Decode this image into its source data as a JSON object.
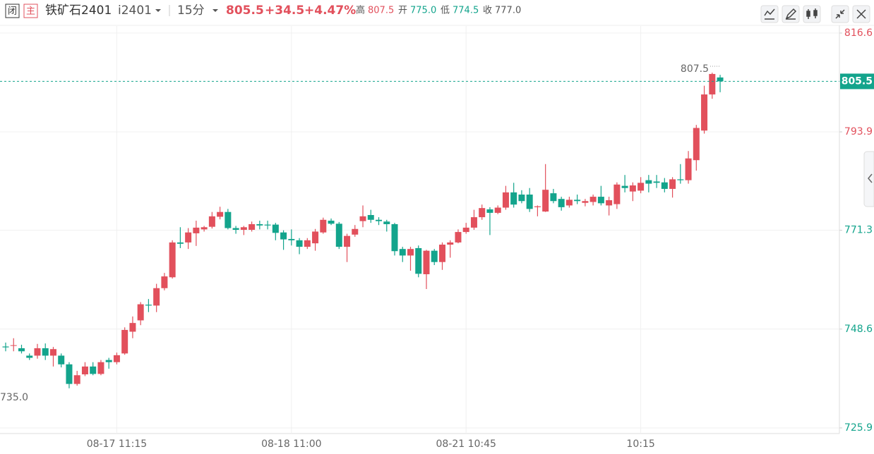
{
  "header": {
    "closed": "闭",
    "main": "主",
    "name": "铁矿石2401",
    "code": "i2401",
    "period": "15分",
    "price": "805.5",
    "change": "+34.5",
    "change_pct": "+4.47%",
    "high_label": "高",
    "high": "807.5",
    "open_label": "开",
    "open": "775.0",
    "low_label": "低",
    "low": "774.5",
    "close_label": "收",
    "close": "777.0"
  },
  "chart_data": {
    "type": "candlestick",
    "categories": [
      null,
      null,
      null,
      null,
      null,
      null,
      null,
      null,
      null,
      null,
      null,
      null,
      null,
      null,
      "08-17 11:15",
      null,
      null,
      null,
      null,
      null,
      null,
      null,
      null,
      null,
      null,
      null,
      null,
      null,
      null,
      null,
      null,
      null,
      null,
      null,
      null,
      null,
      "08-18 11:00",
      null,
      null,
      null,
      null,
      null,
      null,
      null,
      null,
      null,
      null,
      null,
      null,
      null,
      null,
      null,
      null,
      null,
      null,
      null,
      null,
      null,
      "08-21 10:45",
      null,
      null,
      null,
      null,
      null,
      null,
      null,
      null,
      null,
      null,
      null,
      null,
      null,
      null,
      null,
      null,
      null,
      null,
      null,
      null,
      null,
      "10:15",
      null,
      null,
      null,
      null,
      null,
      null,
      null,
      null,
      null,
      null
    ],
    "open": [
      744.6,
      744.9,
      744.2,
      742.5,
      742.5,
      744.2,
      742.5,
      742.5,
      740.5,
      736,
      738.2,
      740,
      738.3,
      741.5,
      741,
      743,
      748,
      750.6,
      754.2,
      754,
      758,
      760.5,
      768.5,
      768.5,
      770.6,
      771.5,
      772.1,
      774.4,
      775.5,
      771.8,
      771.4,
      771.4,
      772.7,
      772.6,
      772.6,
      770.8,
      769.3,
      769,
      767.5,
      768.3,
      770.8,
      773.5,
      772.8,
      767.5,
      770.3,
      773.4,
      774.8,
      773.7,
      773.3,
      772.7,
      767,
      765.5,
      767.2,
      761.2,
      766.6,
      764,
      768,
      768.5,
      770.9,
      771.9,
      774.3,
      776.1,
      775.3,
      776.5,
      780,
      779.5,
      779.5,
      776.6,
      775.6,
      779.8,
      778.5,
      777,
      778.3,
      777.6,
      777.8,
      779,
      777,
      777.3,
      781.5,
      780.2,
      780.4,
      782.8,
      782.5,
      782.3,
      780.8,
      783,
      782.8,
      787.4,
      794.2,
      802.5,
      806.4
    ],
    "high": [
      745.5,
      746.5,
      745,
      743,
      745.2,
      745.3,
      744.5,
      743,
      741,
      739,
      741,
      741,
      741.5,
      742,
      743.2,
      749,
      751.5,
      754.8,
      755.5,
      759,
      761.5,
      769,
      772,
      771.8,
      773.5,
      772.3,
      775.5,
      776.7,
      776.2,
      772.3,
      772.3,
      773.3,
      773.5,
      773.5,
      773,
      771.3,
      771.5,
      769.5,
      769.5,
      771.6,
      774.2,
      774,
      773.2,
      770.5,
      772.5,
      777,
      776,
      774.3,
      773.7,
      773,
      767.5,
      767.5,
      767.8,
      766.8,
      767,
      768.5,
      769,
      771.5,
      773,
      776,
      777.2,
      776.6,
      777,
      781.5,
      782.2,
      780.5,
      781,
      777,
      786.5,
      780.8,
      779,
      779,
      779.5,
      778.5,
      779.5,
      781.5,
      779,
      782.3,
      784,
      782.3,
      783.5,
      784,
      784,
      783.3,
      783.5,
      786.5,
      789.5,
      795.5,
      804.5,
      807.5,
      807
    ],
    "low": [
      743.5,
      743.5,
      743,
      741.5,
      741.8,
      741.5,
      740,
      739.8,
      735,
      735.6,
      737.8,
      738,
      738,
      739.5,
      740.5,
      742.7,
      746.5,
      749.5,
      752.5,
      752.5,
      757.5,
      760.2,
      767.2,
      767,
      767.7,
      771,
      771.7,
      773.8,
      771.5,
      770.5,
      770.2,
      771,
      771.5,
      771.5,
      769,
      766.8,
      767.8,
      765.8,
      767,
      766.6,
      770.5,
      772.5,
      767,
      764,
      769.8,
      772,
      773,
      772.5,
      771,
      765.5,
      764,
      762,
      760.5,
      757.8,
      763.3,
      762.2,
      765,
      768.3,
      770.5,
      771.4,
      773.7,
      770.2,
      775,
      776,
      776.5,
      777.5,
      775.5,
      774.5,
      775.5,
      777.5,
      775.8,
      776.5,
      777.3,
      776.8,
      777,
      777,
      774.7,
      776.2,
      780,
      778,
      779.8,
      780,
      781,
      780,
      778.8,
      782,
      782,
      785,
      793.5,
      801.5,
      803
    ],
    "close": [
      744.4,
      744.9,
      743.5,
      742,
      744.2,
      742.5,
      744,
      740.5,
      736,
      738,
      740,
      738.3,
      741,
      741,
      742.6,
      748.4,
      750,
      754.3,
      754,
      758,
      760.7,
      768.5,
      768.2,
      770.8,
      771.9,
      772,
      774.5,
      775.5,
      771.8,
      771.4,
      772,
      772.7,
      772.4,
      772.4,
      770.7,
      769.2,
      769,
      767.5,
      769,
      771,
      773.7,
      772.8,
      767.5,
      770,
      771.6,
      774.5,
      773.7,
      773.4,
      772.7,
      766.5,
      765.5,
      767,
      761.3,
      766.6,
      764,
      768,
      768.5,
      770.9,
      771.9,
      774.3,
      776.4,
      775.3,
      776.5,
      780,
      777.2,
      778,
      776.2,
      776.8,
      780.6,
      778,
      776.6,
      778.3,
      778,
      778,
      779,
      777.5,
      778.2,
      781.8,
      781,
      781.6,
      782.2,
      782,
      782.2,
      780.8,
      783,
      782.8,
      787.8,
      794.8,
      802.5,
      807.2,
      805.5
    ],
    "up_color": "#e2505c",
    "down_color": "#13a48c",
    "ylim": [
      724.6,
      818.2
    ],
    "yticks": [
      816.6,
      793.9,
      771.3,
      748.6,
      725.9
    ],
    "ytick_colors": [
      "#e2505c",
      "#e2505c",
      "#13a48c",
      "#13a48c",
      "#13a48c"
    ],
    "grid": true,
    "last_price": 805.5,
    "annotations": [
      "807.5",
      "735.0"
    ]
  }
}
